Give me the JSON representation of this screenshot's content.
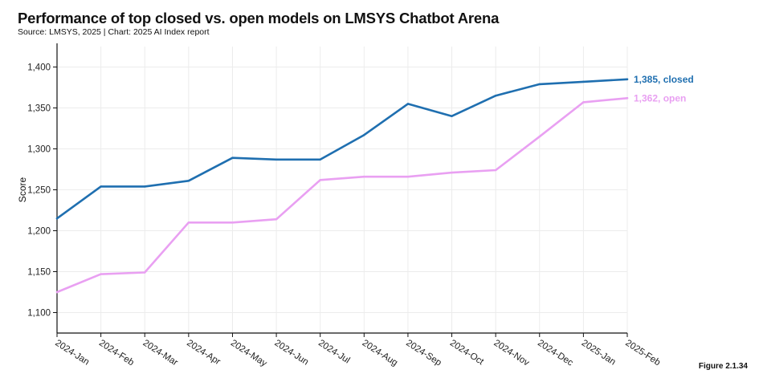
{
  "header": {
    "title": "Performance of top closed vs. open models on LMSYS Chatbot Arena",
    "source": "Source: LMSYS, 2025 | Chart: 2025 AI Index report"
  },
  "figure_label": "Figure 2.1.34",
  "chart_data": {
    "type": "line",
    "title": "Performance of top closed vs. open models on LMSYS Chatbot Arena",
    "xlabel": "",
    "ylabel": "Score",
    "ylim": [
      1075,
      1425
    ],
    "yticks": [
      1100,
      1150,
      1200,
      1250,
      1300,
      1350,
      1400
    ],
    "ytick_labels": [
      "1,100",
      "1,150",
      "1,200",
      "1,250",
      "1,300",
      "1,350",
      "1,400"
    ],
    "categories": [
      "2024-Jan",
      "2024-Feb",
      "2024-Mar",
      "2024-Apr",
      "2024-May",
      "2024-Jun",
      "2024-Jul",
      "2024-Aug",
      "2024-Sep",
      "2024-Oct",
      "2024-Nov",
      "2024-Dec",
      "2025-Jan",
      "2025-Feb"
    ],
    "grid": true,
    "series": [
      {
        "name": "closed",
        "color": "#1f6fb0",
        "end_label": "1,385, closed",
        "values": [
          1215,
          1254,
          1254,
          1261,
          1289,
          1287,
          1287,
          1317,
          1355,
          1340,
          1365,
          1379,
          1382,
          1385
        ]
      },
      {
        "name": "open",
        "color": "#e9a0f2",
        "end_label": "1,362, open",
        "values": [
          1125,
          1147,
          1149,
          1210,
          1210,
          1214,
          1262,
          1266,
          1266,
          1271,
          1274,
          1315,
          1357,
          1362
        ]
      }
    ]
  }
}
